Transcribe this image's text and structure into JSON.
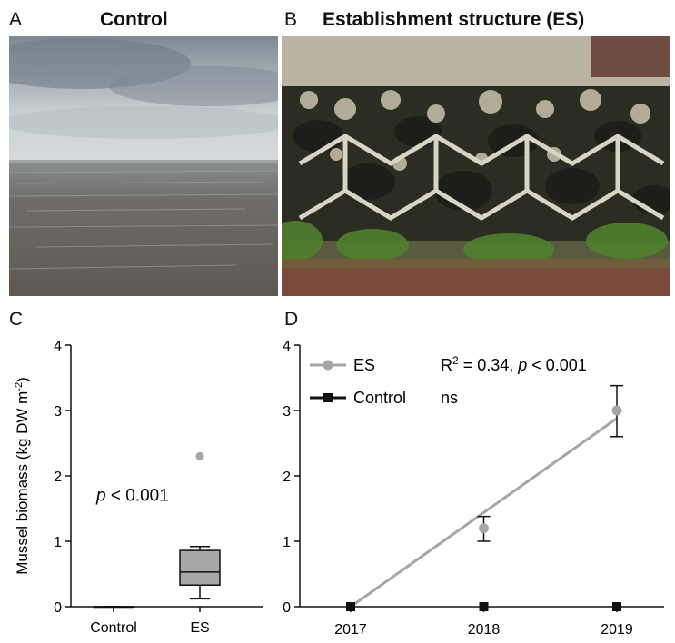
{
  "panels": {
    "a": {
      "letter": "A",
      "title": "Control"
    },
    "b": {
      "letter": "B",
      "title": "Establishment structure (ES)"
    },
    "c": {
      "letter": "C"
    },
    "d": {
      "letter": "D"
    }
  },
  "chart_data": [
    {
      "panel": "C",
      "type": "box",
      "ylabel_prefix": "Mussel biomass (kg DW m",
      "ylabel_exp": "-2",
      "ylabel_suffix": ")",
      "ylim": [
        0,
        4
      ],
      "yticks": [
        "0",
        "1",
        "2",
        "3",
        "4"
      ],
      "categories": [
        "Control",
        "ES"
      ],
      "boxes": [
        {
          "category": "Control",
          "min": 0,
          "q1": 0,
          "median": 0,
          "q3": 0,
          "max": 0,
          "outliers": []
        },
        {
          "category": "ES",
          "min": 0.12,
          "q1": 0.33,
          "median": 0.53,
          "q3": 0.86,
          "max": 0.92,
          "outliers": [
            2.3
          ]
        }
      ],
      "annotation": {
        "italic": "p",
        "text": " < 0.001"
      },
      "colors": {
        "box_fill": "#a6a6a6",
        "outline": "#111111",
        "outlier": "#a6a6a6"
      }
    },
    {
      "panel": "D",
      "type": "line",
      "ylim": [
        0,
        4
      ],
      "yticks": [
        "0",
        "1",
        "2",
        "3",
        "4"
      ],
      "x": [
        "2017",
        "2018",
        "2019"
      ],
      "series": [
        {
          "name": "ES",
          "values": [
            0,
            1.2,
            3.0
          ],
          "err_low": [
            0,
            1.0,
            2.6
          ],
          "err_high": [
            0,
            1.38,
            3.38
          ],
          "color": "#a6a6a6",
          "marker": "circle",
          "fit": {
            "x_from": 2017,
            "y_from": -0.02,
            "x_to": 2019,
            "y_to": 2.88
          },
          "stat": {
            "r2": "R",
            "r2_exp": "2",
            "r2_val": " = 0.34, ",
            "p_italic": "p",
            "p_val": " < 0.001"
          }
        },
        {
          "name": "Control",
          "values": [
            0,
            0,
            0
          ],
          "color": "#111111",
          "marker": "square",
          "stat": {
            "text": "ns"
          }
        }
      ],
      "legend_position": "top-left"
    }
  ]
}
